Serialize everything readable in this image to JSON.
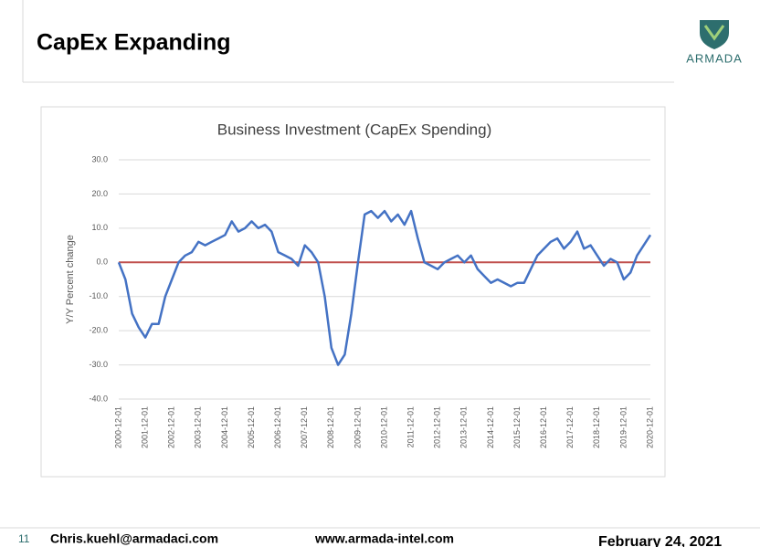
{
  "header": {
    "title": "CapEx Expanding",
    "logo": "ARMADA"
  },
  "chart_data": {
    "type": "line",
    "title": "Business Investment (CapEx Spending)",
    "y_label": "Y/Y Percent change",
    "categories": [
      "2000-12-01",
      null,
      null,
      null,
      "2001-12-01",
      null,
      null,
      null,
      "2002-12-01",
      null,
      null,
      null,
      "2003-12-01",
      null,
      null,
      null,
      "2004-12-01",
      null,
      null,
      null,
      "2005-12-01",
      null,
      null,
      null,
      "2006-12-01",
      null,
      null,
      null,
      "2007-12-01",
      null,
      null,
      null,
      "2008-12-01",
      null,
      null,
      null,
      "2009-12-01",
      null,
      null,
      null,
      "2010-12-01",
      null,
      null,
      null,
      "2011-12-01",
      null,
      null,
      null,
      "2012-12-01",
      null,
      null,
      null,
      "2013-12-01",
      null,
      null,
      null,
      "2014-12-01",
      null,
      null,
      null,
      "2015-12-01",
      null,
      null,
      null,
      "2016-12-01",
      null,
      null,
      null,
      "2017-12-01",
      null,
      null,
      null,
      "2018-12-01",
      null,
      null,
      null,
      "2019-12-01",
      null,
      null,
      null,
      "2020-12-01"
    ],
    "series": [
      {
        "color": "#4472c4",
        "values": [
          0,
          -5,
          -15,
          -19,
          -22,
          -18,
          -18,
          -10,
          -5,
          0,
          2,
          3,
          6,
          5,
          6,
          7,
          8,
          12,
          9,
          10,
          12,
          10,
          11,
          9,
          3,
          2,
          1,
          -1,
          5,
          3,
          0,
          -10,
          -25,
          -30,
          -27,
          -15,
          0,
          14,
          15,
          13,
          15,
          12,
          14,
          11,
          15,
          7,
          0,
          -1,
          -2,
          0,
          1,
          2,
          0,
          2,
          -2,
          -4,
          -6,
          -5,
          -6,
          -7,
          -6,
          -6,
          -2,
          2,
          4,
          6,
          7,
          4,
          6,
          9,
          4,
          5,
          2,
          -1,
          1,
          0,
          -5,
          -3,
          2,
          5,
          8
        ]
      }
    ],
    "hline": {
      "value": 0,
      "color": "#c0504d"
    },
    "ylim": [
      -40,
      30
    ],
    "yticks": [
      {
        "value": -40,
        "label": "-40.0"
      },
      {
        "value": -30,
        "label": "-30.0"
      },
      {
        "value": -20,
        "label": "-20.0"
      },
      {
        "value": -10,
        "label": "-10.0"
      },
      {
        "value": 0,
        "label": "0.0"
      },
      {
        "value": 10,
        "label": "10.0"
      },
      {
        "value": 20,
        "label": "20.0"
      },
      {
        "value": 30,
        "label": "30.0"
      }
    ],
    "grid": true
  },
  "footer": {
    "page": "11",
    "email": "Chris.kuehl@armadaci.com",
    "website": "www.armada-intel.com",
    "date": "February 24, 2021"
  }
}
